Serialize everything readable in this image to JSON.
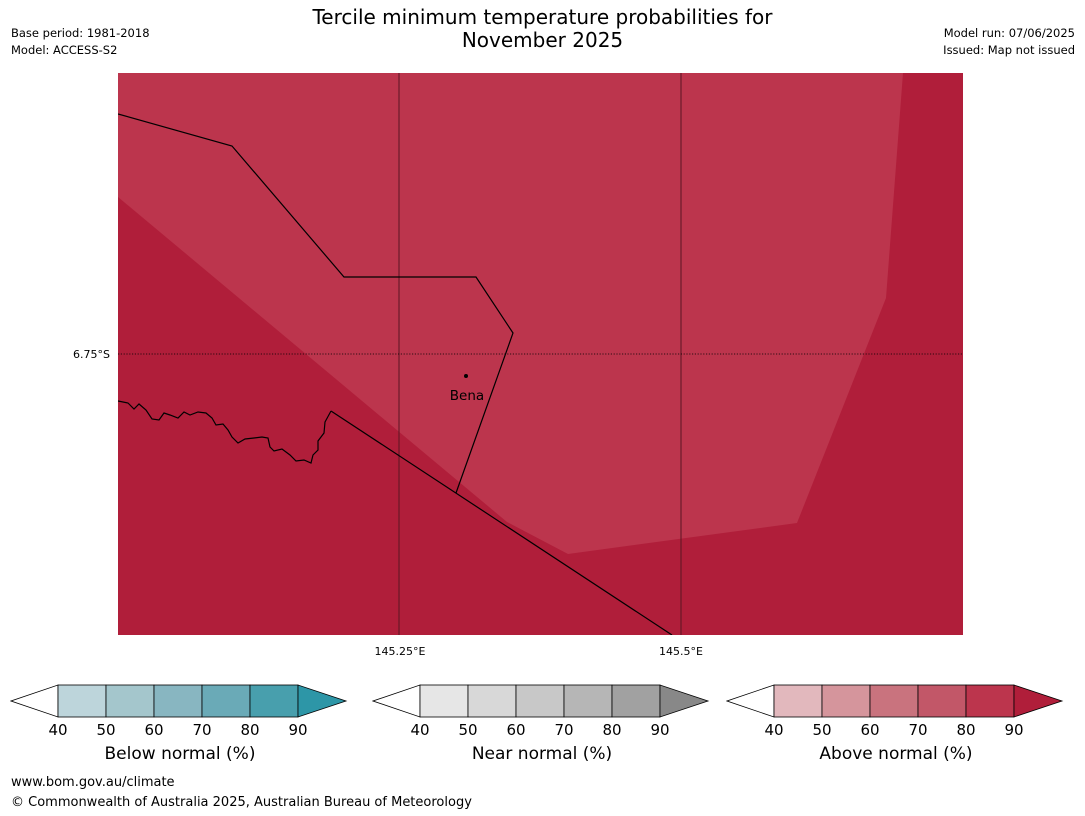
{
  "title_line1": "Tercile minimum temperature probabilities for",
  "title_line2": "November 2025",
  "meta_left": {
    "base_period": "Base period: 1981-2018",
    "model": "Model: ACCESS-S2"
  },
  "meta_right": {
    "model_run": "Model run: 07/06/2025",
    "issued": "Issued: Map not issued"
  },
  "map": {
    "lat_label": "6.75°S",
    "lon_labels": [
      "145.25°E",
      "145.5°E"
    ],
    "place_label": "Bena",
    "colors": {
      "above_90": "#b01e3a",
      "above_80": "#bc354d"
    }
  },
  "legends": [
    {
      "title": "Below normal (%)",
      "ticks": [
        "40",
        "50",
        "60",
        "70",
        "80",
        "90"
      ],
      "colors": [
        "#ffffff",
        "#bdd5db",
        "#a4c6cc",
        "#88b6c1",
        "#6aaab7",
        "#489fad",
        "#2d96a7"
      ]
    },
    {
      "title": "Near normal (%)",
      "ticks": [
        "40",
        "50",
        "60",
        "70",
        "80",
        "90"
      ],
      "colors": [
        "#ffffff",
        "#e6e6e6",
        "#d8d8d8",
        "#c8c8c8",
        "#b6b6b6",
        "#a1a1a1",
        "#888888"
      ]
    },
    {
      "title": "Above normal (%)",
      "ticks": [
        "40",
        "50",
        "60",
        "70",
        "80",
        "90"
      ],
      "colors": [
        "#ffffff",
        "#e2b8bd",
        "#d5959c",
        "#c9737e",
        "#c25768",
        "#bc354d",
        "#b01e3a"
      ]
    }
  ],
  "footer": {
    "url": "www.bom.gov.au/climate",
    "copyright": "© Commonwealth of Australia 2025, Australian Bureau of Meteorology"
  }
}
